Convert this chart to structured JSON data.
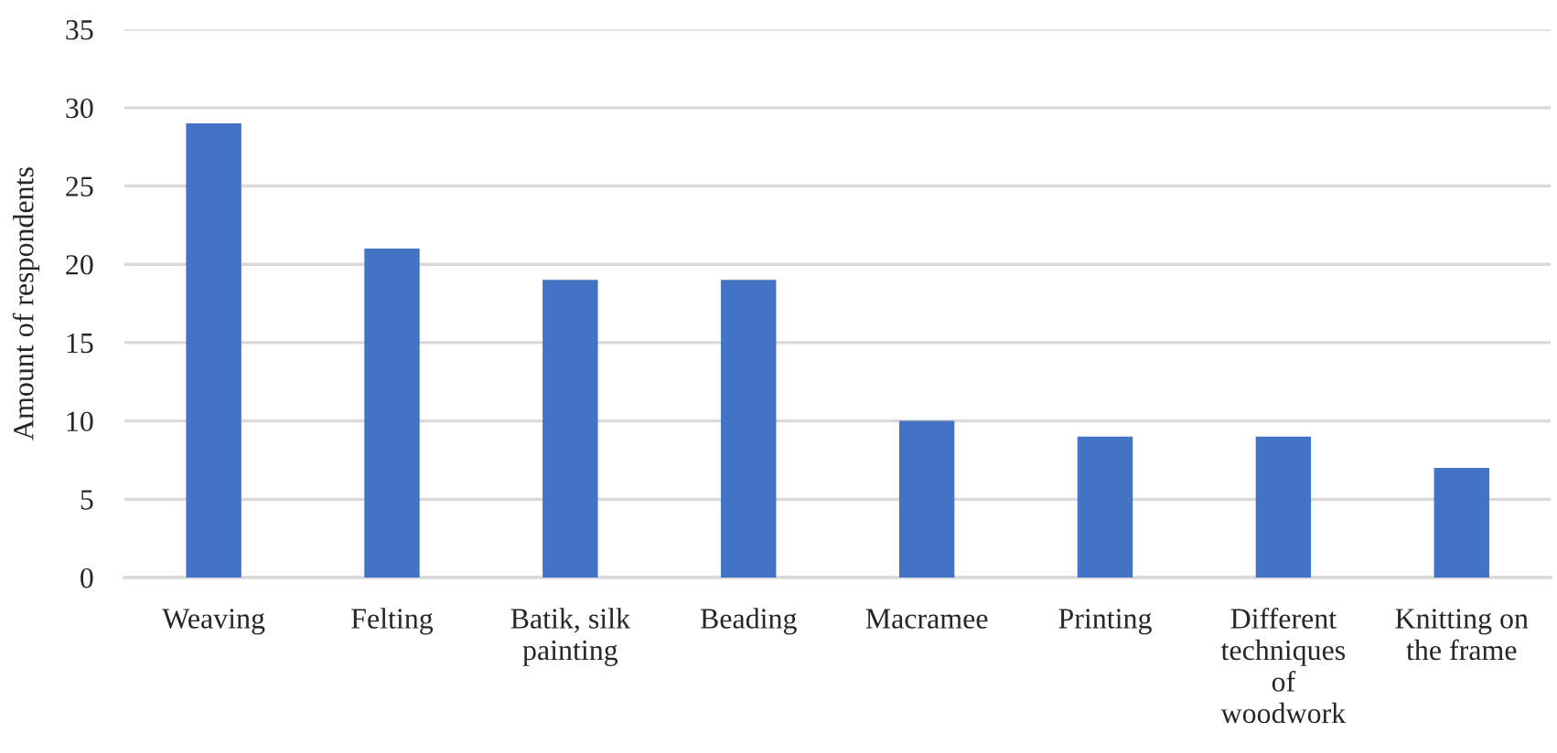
{
  "chart_data": {
    "type": "bar",
    "ylabel": "Amount of respondents",
    "categories": [
      "Weaving",
      "Felting",
      "Batik, silk\npainting",
      "Beading",
      "Macramee",
      "Printing",
      "Different\ntechniques\nof\nwoodwork",
      "Knitting on\nthe frame"
    ],
    "values": [
      29,
      21,
      19,
      19,
      10,
      9,
      9,
      7
    ],
    "color": "#4472c4",
    "ylim": [
      0,
      35
    ],
    "yticks": [
      0,
      5,
      10,
      15,
      20,
      25,
      30,
      35
    ],
    "grid": "y"
  }
}
